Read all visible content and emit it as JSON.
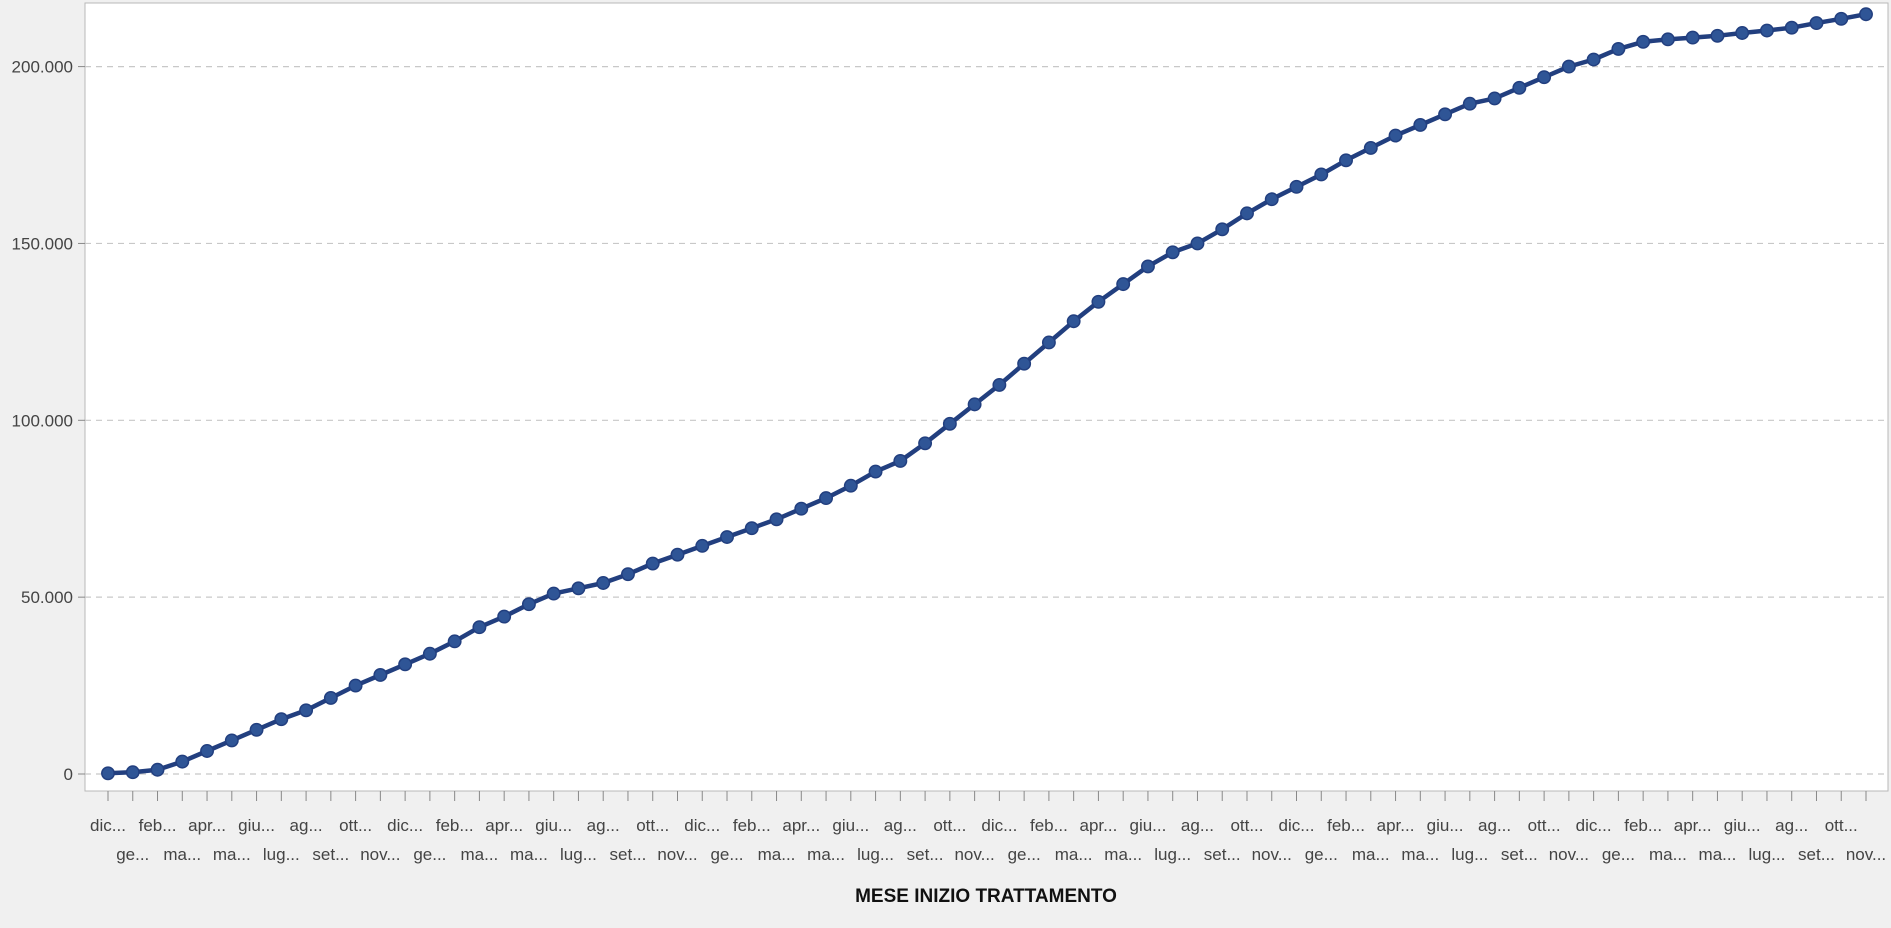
{
  "chart_data": {
    "type": "line",
    "title": "",
    "xlabel": "MESE INIZIO TRATTAMENTO",
    "ylabel": "",
    "ylim": [
      0,
      216000
    ],
    "y_ticks": [
      0,
      50000,
      100000,
      150000,
      200000
    ],
    "y_tick_labels": [
      "0",
      "50.000",
      "100.000",
      "150.000",
      "200.000"
    ],
    "grid": true,
    "grid_axis": "y",
    "legend": "none",
    "marker": "circle",
    "line_color": "#223f7f",
    "marker_color": "#2f5596",
    "x_tick_labels": [
      "dic...",
      "ge...",
      "feb...",
      "ma...",
      "apr...",
      "ma...",
      "giu...",
      "lug...",
      "ag...",
      "set...",
      "ott...",
      "nov...",
      "dic...",
      "ge...",
      "feb...",
      "ma...",
      "apr...",
      "ma...",
      "giu...",
      "lug...",
      "ag...",
      "set...",
      "ott...",
      "nov...",
      "dic...",
      "ge...",
      "feb...",
      "ma...",
      "apr...",
      "ma...",
      "giu...",
      "lug...",
      "ag...",
      "set...",
      "ott...",
      "nov...",
      "dic...",
      "ge...",
      "feb...",
      "ma...",
      "apr...",
      "ma...",
      "giu...",
      "lug...",
      "ag...",
      "set...",
      "ott...",
      "nov...",
      "dic...",
      "ge...",
      "feb...",
      "ma...",
      "apr...",
      "ma...",
      "giu...",
      "lug...",
      "ag...",
      "set...",
      "ott...",
      "nov...",
      "dic...",
      "ge...",
      "feb...",
      "ma...",
      "apr...",
      "ma...",
      "giu...",
      "lug...",
      "ag...",
      "set...",
      "ott...",
      "nov..."
    ],
    "series": [
      {
        "values": [
          200,
          500,
          1200,
          3500,
          6500,
          9500,
          12500,
          15500,
          18000,
          21500,
          25000,
          28000,
          31000,
          34000,
          37500,
          41500,
          44500,
          48000,
          51000,
          52500,
          54000,
          56500,
          59500,
          62000,
          64500,
          67000,
          69500,
          72000,
          75000,
          78000,
          81500,
          85500,
          88500,
          93500,
          99000,
          104500,
          110000,
          116000,
          122000,
          128000,
          133500,
          138500,
          143500,
          147500,
          150000,
          154000,
          158500,
          162500,
          166000,
          169500,
          173500,
          177000,
          180500,
          183500,
          186500,
          189500,
          191000,
          194000,
          197000,
          200000,
          202000,
          205000,
          207000,
          207700,
          208200,
          208700,
          209500,
          210200,
          211000,
          212300,
          213500,
          214800
        ]
      }
    ]
  }
}
